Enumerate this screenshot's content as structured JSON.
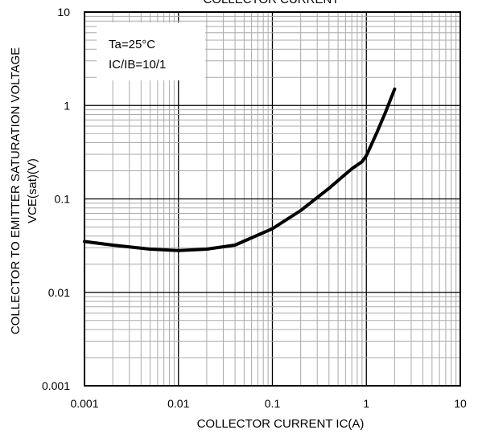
{
  "chart_data": {
    "type": "line",
    "title": "COLLECTOR CURRENT",
    "xlabel": "COLLECTOR CURRENT  IC(A)",
    "ylabel_line1": "COLLECTOR TO EMITTER SATURATION VOLTAGE",
    "ylabel_line2": "VCE(sat)(V)",
    "xscale": "log",
    "yscale": "log",
    "xlim": [
      0.001,
      10
    ],
    "ylim": [
      0.001,
      10
    ],
    "grid": true,
    "x_ticks": [
      "0.001",
      "0.01",
      "0.1",
      "1",
      "10"
    ],
    "y_ticks": [
      "0.001",
      "0.01",
      "0.1",
      "1",
      "10"
    ],
    "annotations": [
      "Ta=25°C",
      "IC/IB=10/1"
    ],
    "series": [
      {
        "x": [
          0.001,
          0.002,
          0.005,
          0.01,
          0.02,
          0.04,
          0.07,
          0.1,
          0.2,
          0.4,
          0.7,
          0.9,
          1.0,
          1.3,
          1.6,
          2.0
        ],
        "y": [
          0.035,
          0.032,
          0.029,
          0.028,
          0.029,
          0.032,
          0.041,
          0.048,
          0.075,
          0.13,
          0.21,
          0.25,
          0.29,
          0.52,
          0.85,
          1.5
        ]
      }
    ]
  }
}
